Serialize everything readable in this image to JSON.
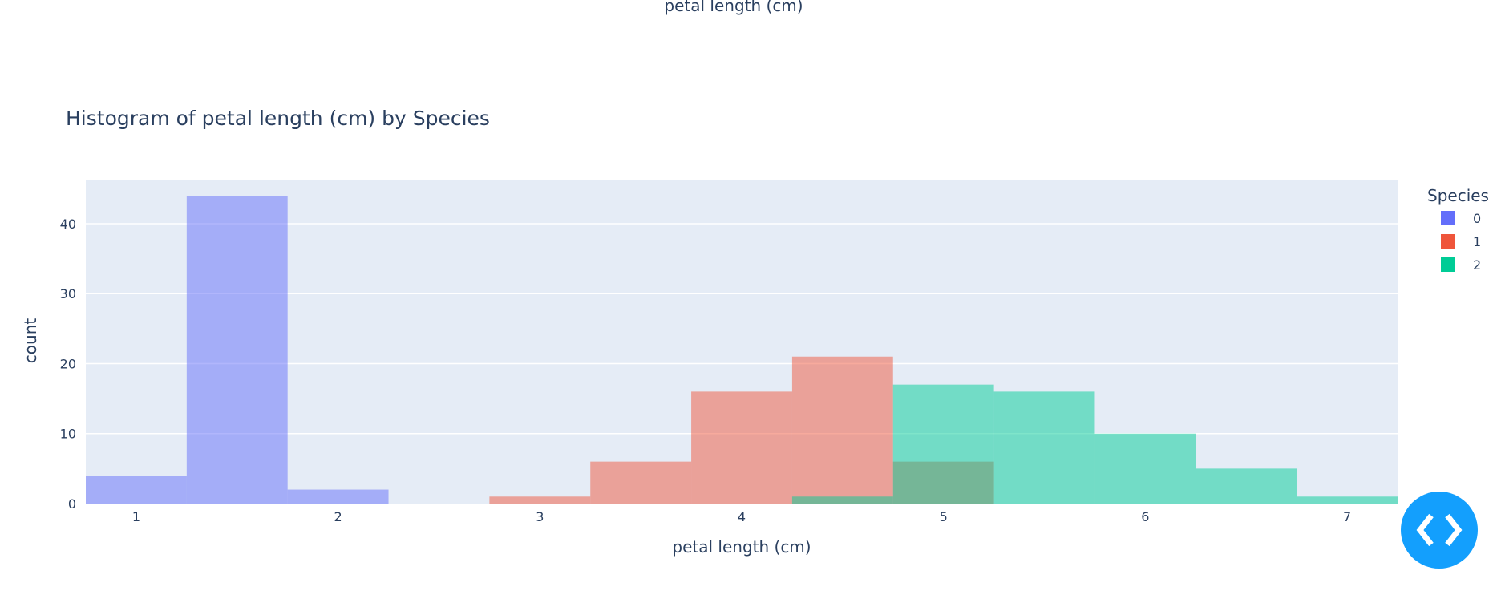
{
  "top_label": "petal length (cm)",
  "chart_data": {
    "type": "bar",
    "title": "Histogram of petal length (cm) by Species",
    "xlabel": "petal length (cm)",
    "ylabel": "count",
    "xlim": [
      0.75,
      7.25
    ],
    "ylim": [
      0,
      46.3
    ],
    "xticks": [
      1,
      2,
      3,
      4,
      5,
      6,
      7
    ],
    "yticks": [
      0,
      10,
      20,
      30,
      40
    ],
    "grid": true,
    "barmode": "overlay",
    "opacity": 0.5,
    "bin_width": 0.5,
    "legend": {
      "title": "Species",
      "position": "right"
    },
    "series": [
      {
        "name": "0",
        "color": "#636efa",
        "bins": [
          [
            0.75,
            1.25,
            4
          ],
          [
            1.25,
            1.75,
            44
          ],
          [
            1.75,
            2.25,
            2
          ]
        ]
      },
      {
        "name": "1",
        "color": "#EF553B",
        "bins": [
          [
            2.75,
            3.25,
            1
          ],
          [
            3.25,
            3.75,
            6
          ],
          [
            3.75,
            4.25,
            16
          ],
          [
            4.25,
            4.75,
            21
          ],
          [
            4.75,
            5.25,
            6
          ]
        ]
      },
      {
        "name": "2",
        "color": "#00cc96",
        "bins": [
          [
            4.25,
            4.75,
            1
          ],
          [
            4.75,
            5.25,
            17
          ],
          [
            5.25,
            5.75,
            16
          ],
          [
            5.75,
            6.25,
            10
          ],
          [
            6.25,
            6.75,
            5
          ],
          [
            6.75,
            7.25,
            1
          ]
        ]
      }
    ]
  },
  "colors": {
    "plot_bg": "#e5ecf6",
    "text": "#2a3f5f",
    "code_button": "#139ffd"
  },
  "code_button": {
    "icon": "code-brackets-icon"
  }
}
